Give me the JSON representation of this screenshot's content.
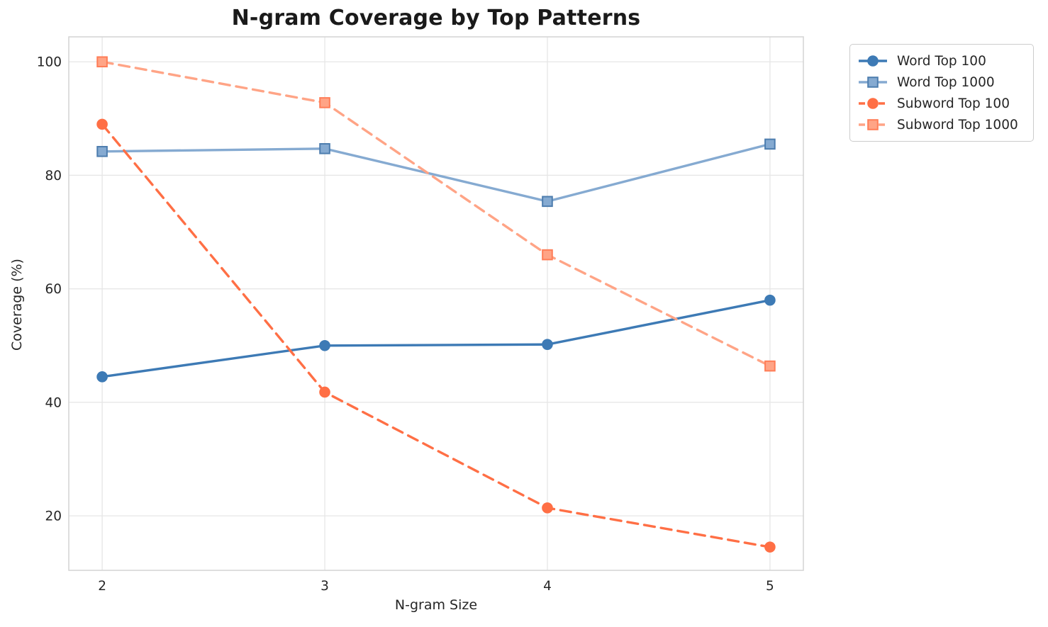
{
  "chart_data": {
    "type": "line",
    "title": "N-gram Coverage by Top Patterns",
    "xlabel": "N-gram Size",
    "ylabel": "Coverage (%)",
    "x": [
      2,
      3,
      4,
      5
    ],
    "xticks": [
      "2",
      "3",
      "4",
      "5"
    ],
    "yticks": [
      20,
      40,
      60,
      80,
      100
    ],
    "xlim": [
      1.85,
      5.15
    ],
    "ylim": [
      10.4,
      104.4
    ],
    "grid": true,
    "legend_position": "outside-upper-right",
    "background_color": "#ffffff",
    "grid_color": "#e6e6e6",
    "series": [
      {
        "name": "Word Top 100",
        "values": [
          44.5,
          50.0,
          50.2,
          58.0
        ],
        "color": "#3d7ab5",
        "edge_color": "#3d7ab5",
        "line_style": "solid",
        "marker": "circle"
      },
      {
        "name": "Word Top 1000",
        "values": [
          84.2,
          84.7,
          75.4,
          85.5
        ],
        "color": "#85aad1",
        "edge_color": "#4d7dae",
        "line_style": "solid",
        "marker": "square"
      },
      {
        "name": "Subword Top 100",
        "values": [
          89.0,
          41.8,
          21.4,
          14.5
        ],
        "color": "#ff6f45",
        "edge_color": "#ff6f45",
        "line_style": "dashed",
        "marker": "circle"
      },
      {
        "name": "Subword Top 1000",
        "values": [
          100.0,
          92.8,
          66.0,
          46.4
        ],
        "color": "#ffa486",
        "edge_color": "#ff7d57",
        "line_style": "dashed",
        "marker": "square"
      }
    ]
  }
}
